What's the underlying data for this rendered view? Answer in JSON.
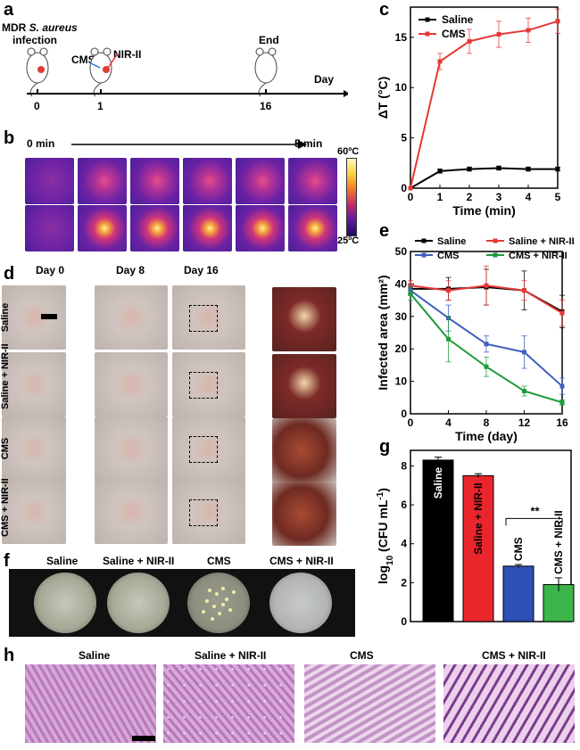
{
  "panel_a": {
    "label": "a",
    "infection_line1": "MDR S. aureus",
    "infection_line1_plain": "MDR ",
    "infection_line1_ital": "S. aureus",
    "infection_line2": "infection",
    "cms": "CMS",
    "nir": "NIR-II",
    "end": "End",
    "axis_label": "Day",
    "ticks": [
      "0",
      "1",
      "16"
    ]
  },
  "panel_b": {
    "label": "b",
    "start": "0 min",
    "end": "5 min",
    "scale_max": "60ºC",
    "scale_min": "25ºC"
  },
  "panel_d": {
    "label": "d",
    "cols": [
      "Day 0",
      "Day 8",
      "Day 16"
    ],
    "rows": [
      "Saline",
      "Saline + NIR-II",
      "CMS",
      "CMS + NIR-II"
    ]
  },
  "panel_f": {
    "label": "f",
    "groups": [
      "Saline",
      "Saline + NIR-II",
      "CMS",
      "CMS + NIR-II"
    ]
  },
  "panel_h": {
    "label": "h",
    "groups": [
      "Saline",
      "Saline + NIR-II",
      "CMS",
      "CMS + NIR-II"
    ]
  },
  "chart_data": [
    {
      "panel": "c",
      "type": "line",
      "x": [
        0,
        1,
        2,
        3,
        4,
        5
      ],
      "xlabel": "Time (min)",
      "ylabel": "ΔT (°C)",
      "xlim": [
        0,
        5
      ],
      "ylim": [
        0,
        18
      ],
      "xticks": [
        "0",
        "1",
        "2",
        "3",
        "4",
        "5"
      ],
      "yticks": [
        "0",
        "5",
        "10",
        "15"
      ],
      "legend_position": "top-left",
      "series": [
        {
          "name": "Saline",
          "color": "#000000",
          "values": [
            0,
            1.7,
            1.9,
            2.0,
            1.9,
            1.9
          ],
          "err": [
            0,
            0.2,
            0.2,
            0.2,
            0.2,
            0.2
          ]
        },
        {
          "name": "CMS",
          "color": "#e53935",
          "values": [
            0,
            12.6,
            14.6,
            15.3,
            15.7,
            16.6
          ],
          "err": [
            0,
            0.8,
            1.2,
            1.3,
            1.2,
            1.2
          ]
        }
      ]
    },
    {
      "panel": "e",
      "type": "line",
      "x": [
        0,
        4,
        8,
        12,
        16
      ],
      "xlabel": "Time (day)",
      "ylabel": "Infected area (mm²)",
      "xlim": [
        0,
        16
      ],
      "ylim": [
        0,
        50
      ],
      "xticks": [
        "0",
        "4",
        "8",
        "12",
        "16"
      ],
      "yticks": [
        "0",
        "10",
        "20",
        "30",
        "40",
        "50"
      ],
      "legend_position": "top",
      "series": [
        {
          "name": "Saline",
          "color": "#000000",
          "values": [
            38.5,
            38.5,
            39.0,
            38.0,
            31.5
          ],
          "err": [
            1.5,
            3.5,
            5.5,
            6.0,
            5.0
          ]
        },
        {
          "name": "Saline + NIR-II",
          "color": "#e53935",
          "values": [
            39.5,
            38.0,
            39.5,
            38.0,
            31.0
          ],
          "err": [
            1.5,
            3.0,
            6.0,
            3.0,
            4.0
          ]
        },
        {
          "name": "CMS",
          "color": "#3f5fc0",
          "values": [
            38.0,
            29.5,
            21.5,
            19.0,
            8.5
          ],
          "err": [
            1.5,
            4.0,
            2.5,
            5.0,
            2.5
          ]
        },
        {
          "name": "CMS + NIR-II",
          "color": "#1e9b3c",
          "values": [
            37.0,
            23.0,
            14.5,
            7.0,
            3.5
          ],
          "err": [
            2.0,
            7.0,
            3.0,
            1.5,
            0.8
          ]
        }
      ]
    },
    {
      "panel": "g",
      "type": "bar",
      "categories": [
        "Saline",
        "Saline + NIR-II",
        "CMS",
        "CMS + NIR-II"
      ],
      "values": [
        8.3,
        7.5,
        2.85,
        1.9
      ],
      "err": [
        0.15,
        0.1,
        0.08,
        0.35
      ],
      "colors": [
        "#000000",
        "#e8262c",
        "#2e4fb6",
        "#3cb54a"
      ],
      "ylabel": "log10 (CFU mL-1)",
      "ylabel_main": "log",
      "ylabel_sub": "10",
      "ylabel_unit": " (CFU mL",
      "ylabel_sup": "-1",
      "ylabel_close": ")",
      "ylim": [
        0,
        8.8
      ],
      "yticks": [
        "0",
        "2",
        "4",
        "6",
        "8"
      ],
      "significance": "**"
    }
  ]
}
